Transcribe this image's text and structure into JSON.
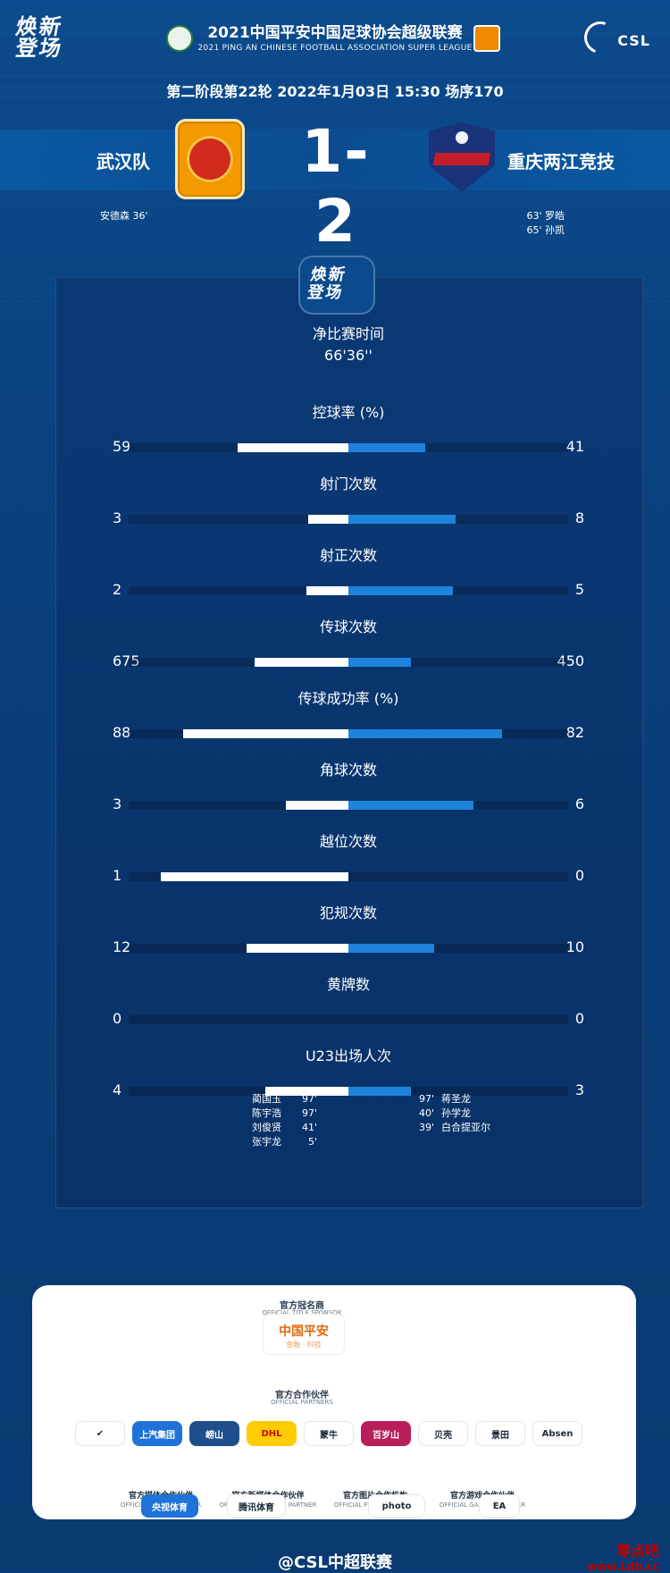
{
  "header": {
    "brand_left_line1": "焕新",
    "brand_left_line2": "登场",
    "league_cn": "2021中国平安中国足球协会超级联赛",
    "league_en": "2021 PING AN CHINESE FOOTBALL ASSOCIATION SUPER LEAGUE",
    "brand_right": "CSL"
  },
  "match": {
    "meta": "第二阶段第22轮  2022年1月03日 15:30 场序170",
    "home_team": "武汉队",
    "away_team": "重庆两江竞技",
    "score": "1-2",
    "home_scorers": [
      "安德森  36'"
    ],
    "away_scorers": [
      "63'  罗皓",
      "65'  孙凯"
    ]
  },
  "panel": {
    "badge_line1": "焕新",
    "badge_line2": "登场",
    "net_time_label": "净比赛时间",
    "net_time_value": "66'36''"
  },
  "stats": [
    {
      "label": "控球率 (%)",
      "home": "59",
      "away": "41",
      "home_val": 59,
      "away_val": 41,
      "max": 100
    },
    {
      "label": "射门次数",
      "home": "3",
      "away": "8",
      "home_val": 3,
      "away_val": 8,
      "max": 14
    },
    {
      "label": "射正次数",
      "home": "2",
      "away": "5",
      "home_val": 2,
      "away_val": 5,
      "max": 9
    },
    {
      "label": "传球次数",
      "home": "675",
      "away": "450",
      "home_val": 675,
      "away_val": 450,
      "max": 1350
    },
    {
      "label": "传球成功率 (%)",
      "home": "88",
      "away": "82",
      "home_val": 88,
      "away_val": 82,
      "max": 100
    },
    {
      "label": "角球次数",
      "home": "3",
      "away": "6",
      "home_val": 3,
      "away_val": 6,
      "max": 9
    },
    {
      "label": "越位次数",
      "home": "1",
      "away": "0",
      "home_val": 1,
      "away_val": 0,
      "max": 1
    },
    {
      "label": "犯规次数",
      "home": "12",
      "away": "10",
      "home_val": 12,
      "away_val": 10,
      "max": 22
    },
    {
      "label": "黄牌数",
      "home": "0",
      "away": "0",
      "home_val": 0,
      "away_val": 0,
      "max": 1
    },
    {
      "label": "U23出场人次",
      "home": "4",
      "away": "3",
      "home_val": 4,
      "away_val": 3,
      "max": 9
    }
  ],
  "u23": {
    "home": [
      {
        "name": "蔺国玉",
        "minute": "97'"
      },
      {
        "name": "陈宇浩",
        "minute": "97'"
      },
      {
        "name": "刘俊贤",
        "minute": "41'"
      },
      {
        "name": "张宇龙",
        "minute": "5'"
      }
    ],
    "away": [
      {
        "minute": "97'",
        "name": "蒋圣龙"
      },
      {
        "minute": "40'",
        "name": "孙学龙"
      },
      {
        "minute": "39'",
        "name": "白合提亚尔"
      }
    ]
  },
  "sponsors": {
    "title_sponsor_header": "官方冠名商",
    "title_sponsor_sub": "OFFICIAL TITLE SPONSOR",
    "title_sponsor_logo": "中国平安",
    "title_sponsor_small": "金融 · 科技",
    "partners_header": "官方合作伙伴",
    "partners_sub": "OFFICIAL PARTNERS",
    "partners": [
      "✔",
      "上汽集团",
      "崂山",
      "DHL",
      "蒙牛",
      "百岁山",
      "贝壳",
      "景田",
      "Absen"
    ],
    "row2": [
      {
        "header": "官方媒体合作伙伴",
        "sub": "OFFICIAL MEDIA PARTNER",
        "badge": "央视体育"
      },
      {
        "header": "官方新媒体合作伙伴",
        "sub": "OFFICIAL NEW MEDIA PARTNER",
        "badge": "腾讯体育"
      },
      {
        "header": "官方图片合作机构",
        "sub": "OFFICIAL PHOTO PARTNER",
        "badge": "photo"
      },
      {
        "header": "官方游戏合作伙伴",
        "sub": "OFFICIAL GAMING PARTNER",
        "badge": "EA"
      }
    ]
  },
  "footer": {
    "weibo": "@CSL中超联赛",
    "watermark_cn": "零点吧",
    "watermark_en": "www.Ldb.cc"
  }
}
